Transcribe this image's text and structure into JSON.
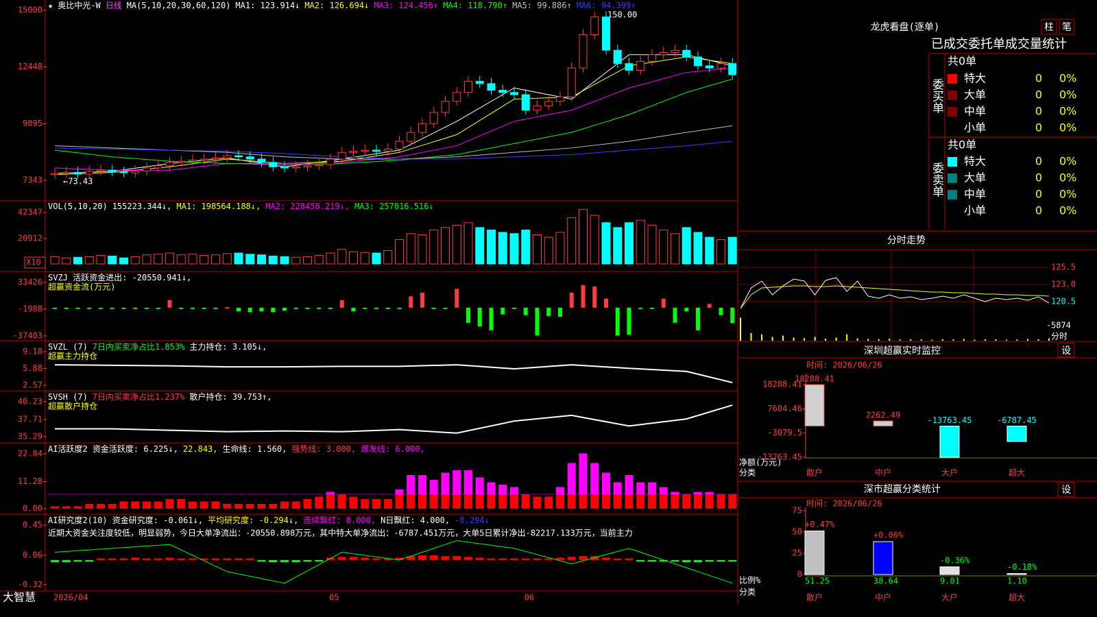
{
  "main": {
    "header": [
      {
        "text": "★",
        "color": "#ffffff"
      },
      {
        "text": "奥比中光-W",
        "color": "#ffffff"
      },
      {
        "text": "日线",
        "color": "#ff3cff"
      },
      {
        "text": "MA(5,10,20,30,60,120)",
        "color": "#ffffff"
      },
      {
        "text": "MA1: 123.914↓",
        "color": "#ffffff"
      },
      {
        "text": "MA2: 126.694↓",
        "color": "#ffff00"
      },
      {
        "text": "MA3: 124.456↑",
        "color": "#ff00ff"
      },
      {
        "text": "MA4: 118.790↑",
        "color": "#00ff00"
      },
      {
        "text": "MA5: 99.886↑",
        "color": "#c0c0c0"
      },
      {
        "text": "MA6: 94.399↑",
        "color": "#3c3cff"
      }
    ],
    "ylim": [
      6417,
      15463
    ],
    "yticks": [
      15000,
      12448,
      9895,
      7343
    ],
    "dates": [
      "2026/04",
      null,
      null,
      null,
      null,
      null,
      null,
      null,
      null,
      null,
      null,
      null,
      null,
      null,
      null,
      null,
      null,
      null,
      null,
      null,
      null,
      null,
      null,
      null,
      "05",
      null,
      null,
      null,
      null,
      null,
      null,
      null,
      null,
      null,
      null,
      null,
      null,
      null,
      null,
      null,
      null,
      "06",
      null,
      null,
      null,
      null,
      null,
      null,
      null,
      null,
      null,
      null,
      null,
      null,
      null,
      null,
      null,
      null,
      null,
      null
    ],
    "open": [
      7600,
      7650,
      7700,
      7620,
      7750,
      7800,
      7720,
      7680,
      7760,
      7900,
      8000,
      8150,
      8200,
      8250,
      8300,
      8350,
      8450,
      8400,
      8300,
      8150,
      7950,
      7900,
      7950,
      8000,
      8050,
      8300,
      8600,
      8650,
      8700,
      8650,
      8750,
      9100,
      9500,
      9900,
      10400,
      10900,
      11300,
      11800,
      11700,
      11400,
      11300,
      11200,
      10500,
      10700,
      10900,
      11100,
      12400,
      13900,
      14700,
      13200,
      12600,
      12300,
      12700,
      13000,
      13100,
      13200,
      12900,
      12500,
      12400,
      12600
    ],
    "close": [
      7650,
      7700,
      7620,
      7750,
      7800,
      7720,
      7680,
      7760,
      7900,
      8000,
      8150,
      8200,
      8250,
      8300,
      8350,
      8450,
      8400,
      8300,
      8150,
      7950,
      7900,
      7950,
      8000,
      8050,
      8300,
      8600,
      8650,
      8700,
      8650,
      8750,
      9100,
      9500,
      9900,
      10400,
      10900,
      11300,
      11800,
      11700,
      11400,
      11300,
      11200,
      10500,
      10700,
      10900,
      11100,
      12400,
      13900,
      14700,
      13200,
      12600,
      12300,
      12700,
      13000,
      13100,
      13200,
      12900,
      12500,
      12400,
      12600,
      12100
    ],
    "high": [
      7900,
      7950,
      7950,
      8000,
      8050,
      8050,
      7950,
      8010,
      8150,
      8250,
      8400,
      8450,
      8500,
      8550,
      8600,
      8700,
      8700,
      8650,
      8550,
      8400,
      8200,
      8200,
      8250,
      8300,
      8550,
      8850,
      8900,
      8950,
      8950,
      9000,
      9350,
      9750,
      10150,
      10650,
      11150,
      11550,
      12050,
      12050,
      11950,
      11650,
      11550,
      11450,
      10950,
      11150,
      11350,
      12650,
      14150,
      14950,
      14950,
      13450,
      12850,
      12950,
      13250,
      13350,
      13450,
      13450,
      13150,
      12750,
      12850,
      12850
    ],
    "low": [
      7400,
      7450,
      7420,
      7420,
      7550,
      7520,
      7480,
      7480,
      7560,
      7700,
      7800,
      7950,
      8000,
      8050,
      8100,
      8150,
      8200,
      8100,
      7950,
      7750,
      7700,
      7700,
      7750,
      7800,
      7850,
      8100,
      8400,
      8450,
      8450,
      8450,
      8550,
      8900,
      9300,
      9700,
      10200,
      10700,
      11100,
      11500,
      11200,
      11100,
      11000,
      10300,
      10300,
      10500,
      10700,
      10900,
      12200,
      13700,
      13000,
      12400,
      12100,
      12100,
      12500,
      12800,
      12900,
      12700,
      12300,
      12200,
      12200,
      11900
    ],
    "ma_x": [
      0,
      5,
      10,
      15,
      20,
      25,
      30,
      35,
      40,
      45,
      50,
      55,
      59
    ],
    "ma_lines": [
      {
        "color": "#ffffff",
        "values": [
          7650,
          7750,
          8100,
          8350,
          7950,
          8300,
          8700,
          10000,
          11500,
          11000,
          13000,
          13000,
          12500
        ]
      },
      {
        "color": "#ffff00",
        "values": [
          7600,
          7700,
          7950,
          8300,
          8100,
          8200,
          8600,
          9400,
          11000,
          11100,
          12500,
          12900,
          12600
        ]
      },
      {
        "color": "#ff00ff",
        "values": [
          7900,
          7800,
          7800,
          8100,
          8100,
          8150,
          8400,
          8900,
          10000,
          10500,
          11500,
          12200,
          12400
        ]
      },
      {
        "color": "#00ff00",
        "values": [
          8700,
          8400,
          8200,
          8100,
          8050,
          8100,
          8250,
          8500,
          9000,
          9500,
          10300,
          11300,
          11900
        ]
      },
      {
        "color": "#c0c0c0",
        "values": [
          8900,
          8800,
          8700,
          8600,
          8400,
          8300,
          8300,
          8400,
          8600,
          8800,
          9100,
          9500,
          9800
        ]
      },
      {
        "color": "#3c3cff",
        "values": [
          8800,
          8750,
          8700,
          8650,
          8550,
          8400,
          8300,
          8300,
          8400,
          8500,
          8700,
          8900,
          9100
        ]
      }
    ],
    "peak_label": "150.00",
    "low_label": "←73.43"
  },
  "volume": {
    "header": [
      {
        "text": "VOL(5,10,20)",
        "color": "#ffffff"
      },
      {
        "text": "155223.344↓,",
        "color": "#ffffff"
      },
      {
        "text": "MA1: 198564.188↓,",
        "color": "#ffff00"
      },
      {
        "text": "MA2: 228458.219↓,",
        "color": "#ff00ff"
      },
      {
        "text": "MA3: 257016.516↓",
        "color": "#00ff00"
      }
    ],
    "ylim": [
      -6204,
      51371
    ],
    "yticks": [
      42347,
      20912
    ],
    "unit": "X10",
    "values": [
      6000,
      5000,
      5500,
      6000,
      7000,
      6500,
      5000,
      6000,
      7500,
      8000,
      9000,
      7500,
      8000,
      7000,
      7500,
      8500,
      9000,
      8000,
      7500,
      6500,
      6000,
      5500,
      6000,
      7000,
      9000,
      12000,
      10000,
      9500,
      9000,
      11000,
      20000,
      25000,
      24000,
      28000,
      30000,
      32000,
      34000,
      30000,
      28000,
      26000,
      25000,
      28000,
      24000,
      22000,
      26000,
      38000,
      45000,
      40000,
      34000,
      30000,
      34000,
      36000,
      32000,
      28000,
      25000,
      30000,
      26000,
      22000,
      20000,
      22000
    ]
  },
  "svzj": {
    "header": [
      {
        "text": "SVZJ  活跃资金进出: -20550.941↓,",
        "color": "#ffffff"
      }
    ],
    "subtitle": "超赢资金流(万元)",
    "ylim": [
      -43759,
      47046
    ],
    "yticks": [
      33426,
      -1988,
      -37403
    ],
    "values": [
      -800,
      -800,
      -800,
      -800,
      -800,
      -800,
      -800,
      -800,
      -800,
      -800,
      10000,
      -900,
      -800,
      -800,
      -800,
      800,
      -5000,
      -6000,
      -5000,
      -6000,
      -4000,
      -800,
      -800,
      -800,
      -800,
      10000,
      -5000,
      -800,
      -800,
      -800,
      -800,
      15000,
      20000,
      -800,
      -800,
      25000,
      -20000,
      -25000,
      -30000,
      -9000,
      -800,
      -10000,
      -37000,
      -11000,
      -12000,
      20000,
      30000,
      28000,
      12000,
      -37000,
      -36000,
      -900,
      -800,
      12000,
      -20000,
      -5000,
      -30000,
      5000,
      -10000,
      -20550
    ]
  },
  "svzl": {
    "header": [
      {
        "text": "SVZL (7)",
        "color": "#ffffff"
      },
      {
        "text": "7日内买卖净占比1.853%",
        "color": "#00ff00"
      },
      {
        "text": "主力持仓: 3.105↓,",
        "color": "#ffffff"
      }
    ],
    "subtitle": "超赢主力持仓",
    "ylim": [
      1.49,
      11.2
    ],
    "yticks": [
      9.18,
      5.88,
      2.57
    ],
    "x": [
      0,
      5,
      10,
      15,
      20,
      25,
      30,
      35,
      40,
      45,
      50,
      55,
      59
    ],
    "values": [
      6.6,
      6.5,
      6.4,
      6.2,
      6.2,
      6.3,
      6.3,
      6.6,
      5.8,
      6.6,
      5.9,
      5.3,
      3.1
    ]
  },
  "svsh": {
    "header": [
      {
        "text": "SVSH (7)",
        "color": "#ffffff"
      },
      {
        "text": "7日内买卖净占比1.237%",
        "color": "#ff3c3c"
      },
      {
        "text": "散户持仓: 39.753↑,",
        "color": "#ffffff"
      }
    ],
    "subtitle": "超赢散户持仓",
    "ylim": [
      34.42,
      41.68
    ],
    "yticks": [
      40.23,
      37.71,
      35.29
    ],
    "x": [
      0,
      5,
      10,
      15,
      20,
      25,
      30,
      35,
      40,
      45,
      50,
      55,
      59
    ],
    "values": [
      36.4,
      36.4,
      36.2,
      36.0,
      36.1,
      36.0,
      36.3,
      35.8,
      37.5,
      38.3,
      36.8,
      37.8,
      39.75
    ]
  },
  "ai_active": {
    "header": [
      {
        "text": "AI活跃度2 资金活跃度: 6.225↓,",
        "color": "#ffffff"
      },
      {
        "text": "22.843,",
        "color": "#ffff00"
      },
      {
        "text": "生命线: 1.560,",
        "color": "#ffffff"
      },
      {
        "text": "强势线: 3.000,",
        "color": "#ff3c3c"
      },
      {
        "text": "爆发线:",
        "color": "#ff00ff"
      },
      {
        "value": 6,
        "label": "6.000,",
        "color": "#ff00ff"
      }
    ],
    "ylim": [
      -2.28,
      27.12
    ],
    "yticks": [
      22.84,
      11.28,
      {
        "value": 0,
        "label": "0.00"
      }
    ],
    "values": [
      1,
      1,
      1,
      2,
      2,
      2,
      3,
      3,
      3,
      3,
      4,
      4,
      3,
      3,
      3,
      2,
      2,
      2,
      2,
      2,
      3,
      3,
      4,
      5,
      7,
      6,
      5,
      4,
      4,
      4,
      8,
      14,
      14,
      12,
      15,
      16,
      16,
      13,
      11,
      10,
      9,
      6,
      5,
      5,
      9,
      19,
      23,
      19,
      15,
      11,
      14,
      11,
      11,
      9,
      7,
      6,
      7,
      7,
      6,
      6
    ]
  },
  "ai_research": {
    "header": [
      {
        "text": "AI研究度2(10) 资金研究度: -0.061↓,",
        "color": "#ffffff"
      },
      {
        "text": "平均研究度: -0.294↓,",
        "color": "#ffff00"
      },
      {
        "text": "连续飘红: 0.000,",
        "color": "#ff00ff"
      },
      {
        "text": "N日飘红: 4.000,",
        "color": "#ffffff"
      },
      {
        "text": "-0.294↓",
        "color": "#3c3cff"
      }
    ],
    "comment": "近期大资金关注度较低，明显弱势，今日大单净流出：-20550.898万元，其中特大单净流出：-6787.451万元，大单5日累计净出-82217.133万元，当前主力",
    "ylim": [
      -0.4,
      0.583
    ],
    "yticks": [
      0.45,
      0.06,
      -0.32
    ],
    "values": [
      -0.03,
      -0.03,
      -0.02,
      -0.02,
      0.02,
      0.02,
      0.02,
      0.03,
      0.02,
      0.02,
      0.03,
      0.02,
      0.02,
      0.02,
      0.02,
      0.02,
      0.02,
      0.02,
      -0.02,
      -0.03,
      -0.03,
      -0.03,
      -0.02,
      -0.02,
      0.03,
      0.04,
      0.04,
      0.03,
      0.02,
      0.02,
      0.03,
      0.05,
      0.06,
      0.06,
      0.05,
      0.05,
      0.04,
      0.03,
      0.02,
      0.02,
      0.02,
      0.02,
      0.02,
      0.02,
      0.03,
      0.04,
      0.05,
      0.05,
      0.03,
      0.02,
      0.02,
      -0.02,
      -0.02,
      -0.02,
      -0.02,
      -0.03,
      -0.03,
      -0.02,
      -0.02,
      -0.02
    ],
    "line_x": [
      0,
      5,
      10,
      15,
      20,
      25,
      30,
      35,
      40,
      45,
      50,
      55,
      59
    ],
    "line": [
      0.1,
      0.15,
      0.2,
      -0.15,
      -0.3,
      0.1,
      0.0,
      0.25,
      0.15,
      -0.05,
      0.15,
      -0.1,
      -0.3
    ]
  },
  "status": {
    "brand": "大智慧"
  },
  "longhu": {
    "title": "龙虎看盘(逐单)",
    "buttons": [
      "柱",
      "笔"
    ],
    "caption": "已成交委托单成交量统计",
    "buy": {
      "side": "委买单",
      "total": "共0单",
      "rows": [
        {
          "name": "特大",
          "color": "#ff0000",
          "count": "0",
          "pct": "0%"
        },
        {
          "name": "大单",
          "color": "#800000",
          "count": "0",
          "pct": "0%"
        },
        {
          "name": "中单",
          "color": "#800000",
          "count": "0",
          "pct": "0%"
        },
        {
          "name": "小单",
          "count": "0",
          "pct": "0%"
        }
      ]
    },
    "sell": {
      "side": "委卖单",
      "total": "共0单",
      "rows": [
        {
          "name": "特大",
          "color": "#00ffff",
          "count": "0",
          "pct": "0%"
        },
        {
          "name": "大单",
          "color": "#008080",
          "count": "0",
          "pct": "0%"
        },
        {
          "name": "中单",
          "color": "#008080",
          "count": "0",
          "pct": "0%"
        },
        {
          "name": "小单",
          "count": "0",
          "pct": "0%"
        }
      ]
    }
  },
  "intraday": {
    "title": "分时走势",
    "ylim": [
      119,
      128
    ],
    "yticks": [
      125.5,
      {
        "value": 123,
        "label": "123.0"
      },
      120.5
    ],
    "price": [
      119.5,
      122.5,
      123.5,
      121.5,
      122.8,
      123.8,
      123.5,
      121.5,
      123.6,
      124.0,
      122.0,
      123.5,
      121.3,
      121.0,
      121.5,
      121.0,
      121.2,
      120.8,
      121.0,
      121.3,
      121.0,
      121.5,
      121.0,
      120.5,
      121.0,
      120.8,
      121.0,
      120.7,
      121.2,
      120.3
    ],
    "avg": [
      119.5,
      121.5,
      122.5,
      122.6,
      122.7,
      122.8,
      122.8,
      122.7,
      122.7,
      122.8,
      122.7,
      122.6,
      122.5,
      122.4,
      122.3,
      122.2,
      122.1,
      122.0,
      121.9,
      121.9,
      121.8,
      121.8,
      121.7,
      121.6,
      121.6,
      121.5,
      121.5,
      121.4,
      121.4,
      121.3
    ],
    "vol_ylim": [
      0,
      9879
    ],
    "vol_tick": 5874,
    "vol_label": "分时",
    "volume": [
      9000,
      3000,
      2500,
      1500,
      2000,
      1200,
      1000,
      1500,
      800,
      1200,
      2500,
      900,
      700,
      600,
      800,
      500,
      600,
      500,
      400,
      600,
      500,
      700,
      400,
      500,
      600,
      400,
      500,
      700,
      600,
      900
    ]
  },
  "monitor": {
    "title": "深圳超赢实时监控",
    "button": "设",
    "time": "时间: 2026/06/26",
    "ylim": [
      -23743,
      23127
    ],
    "yticks": [
      18288.41,
      7604.46,
      -3079.5,
      -13763.45
    ],
    "ylabel": "净额(万元)",
    "xlabel": "分类",
    "categories": [
      "散户",
      "中户",
      "大户",
      "超大"
    ],
    "values": [
      18288.41,
      2262.49,
      -13763.45,
      -6787.45
    ]
  },
  "classify": {
    "title": "深市超赢分类统计",
    "button": "设",
    "time": "时间: 2026/06/26",
    "ylim": [
      -5.65,
      83.06
    ],
    "yticks": [
      75,
      50,
      25,
      0
    ],
    "ylabel": "比例%",
    "xlabel": "分类",
    "categories": [
      "散户",
      "中户",
      "大户",
      "超大"
    ],
    "values": [
      51.25,
      38.64,
      9.01,
      1.1
    ],
    "value_labels": [
      "51.25",
      "38.64",
      "9.01",
      "1.10"
    ],
    "changes": [
      "+0.47%",
      "+0.06%",
      "-0.36%",
      "-0.18%"
    ],
    "colors": [
      "#c0c0c0",
      "#0000ff",
      "#e0e0e0",
      "#e0e0e0"
    ]
  }
}
